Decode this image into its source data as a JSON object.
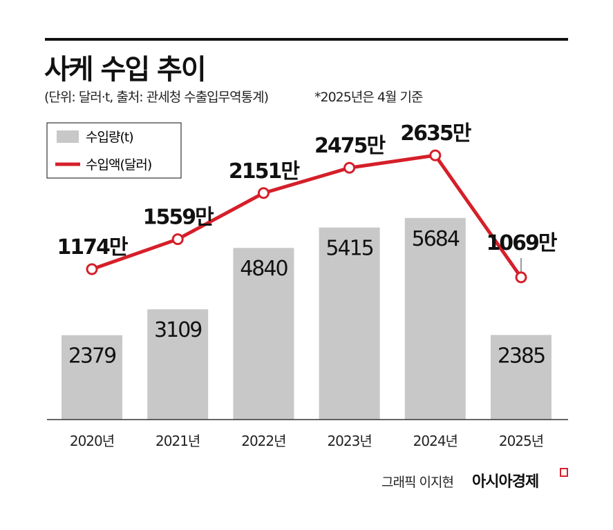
{
  "header": {
    "title": "사케 수입 추이",
    "subtitle": "(단위: 달러·t, 출처: 관세청 수출입무역통계)",
    "note": "*2025년은 4월 기준"
  },
  "footer": {
    "credit": "그래픽 이지현",
    "brand": "아시아경제"
  },
  "colors": {
    "bar": "#c8c8c9",
    "line": "#d51f2a",
    "text": "#111111"
  },
  "chart_data": {
    "type": "bar+line",
    "title": "사케 수입 추이",
    "categories": [
      "2020년",
      "2021년",
      "2022년",
      "2023년",
      "2024년",
      "2025년"
    ],
    "series": [
      {
        "name": "수입량(t)",
        "type": "bar",
        "values": [
          2379,
          3109,
          4840,
          5415,
          5684,
          2385
        ],
        "labels": [
          "2379",
          "3109",
          "4840",
          "5415",
          "5684",
          "2385"
        ]
      },
      {
        "name": "수입액(달러)",
        "type": "line",
        "values": [
          1174,
          1559,
          2151,
          2475,
          2635,
          1069
        ],
        "unit": "만",
        "labels": [
          "1174만",
          "1559만",
          "2151만",
          "2475만",
          "2635만",
          "1069만"
        ]
      }
    ],
    "legend": {
      "position": "top-left",
      "entries": [
        "수입량(t)",
        "수입액(달러)"
      ]
    },
    "grid": false
  }
}
